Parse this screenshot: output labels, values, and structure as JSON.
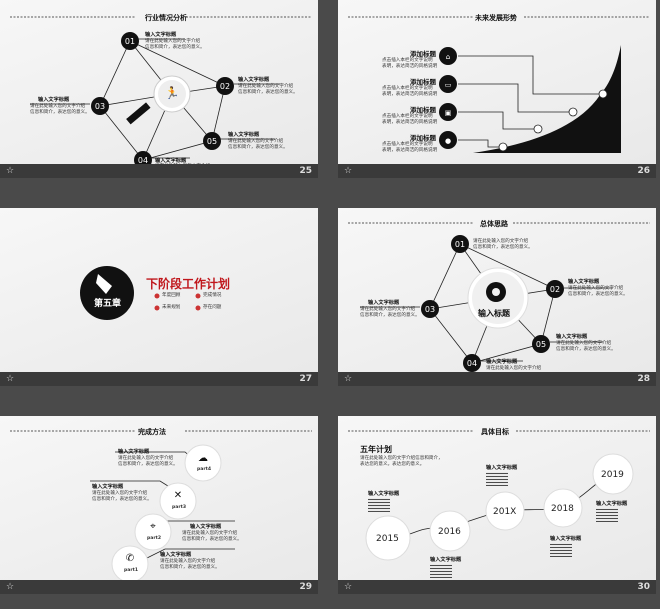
{
  "common": {
    "placeholder_title": "输入文字标题",
    "placeholder_body_1": "请在此处输入您的文字介绍",
    "placeholder_body_2": "信息和简介，表达您的意义。"
  },
  "slide25": {
    "page": "25",
    "title": "行业情况分析",
    "nodes": [
      "01",
      "02",
      "03",
      "04",
      "05"
    ]
  },
  "slide26": {
    "page": "26",
    "title": "未来发展形势",
    "item_title": "添加标题",
    "item_line1": "点击插入本栏的文字说明",
    "item_line2": "表明，表达简洁的风格说明"
  },
  "slide27": {
    "page": "27",
    "chapter": "第五章",
    "heading": "下阶段工作计划",
    "bullets": [
      "年度回顾",
      "完成情况",
      "未来规划",
      "存在问题"
    ]
  },
  "slide28": {
    "page": "28",
    "title": "总体思路",
    "center": "输入标题",
    "nodes": [
      "01",
      "02",
      "03",
      "04",
      "05"
    ]
  },
  "slide29": {
    "page": "29",
    "title": "完成方法",
    "parts": [
      "part4",
      "part3",
      "part2",
      "part1"
    ]
  },
  "slide30": {
    "page": "30",
    "title": "具体目标",
    "subtitle": "五年计划",
    "sub_line1": "请在此处输入您的文字介绍信息和简介，",
    "sub_line2": "表达您的意义。表达您的意义。",
    "years": [
      "2015",
      "2016",
      "201X",
      "2018",
      "2019"
    ]
  }
}
